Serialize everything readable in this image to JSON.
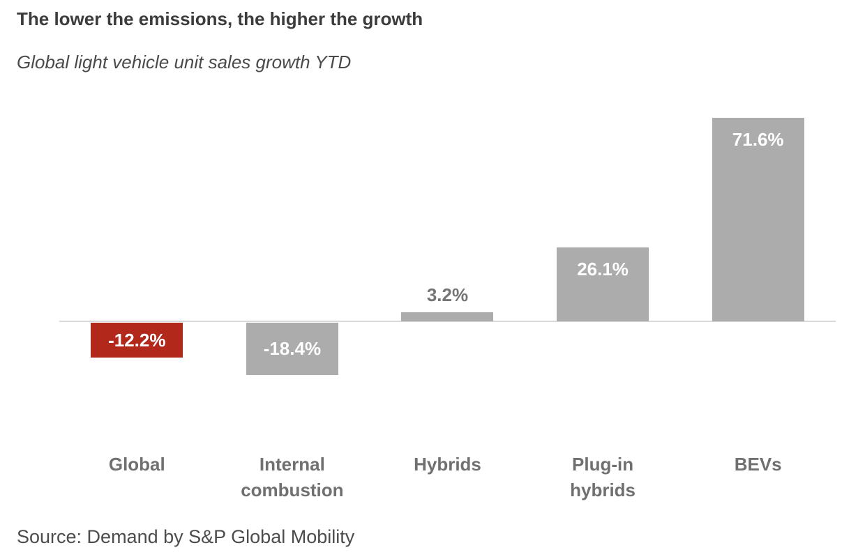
{
  "page": {
    "title": "The lower the emissions, the higher the growth",
    "subtitle": "Global light vehicle unit sales growth YTD",
    "source": "Source: Demand by S&P Global Mobility"
  },
  "colors": {
    "bar_default": "#acacac",
    "bar_highlight": "#b2291c",
    "axis_line": "#d9d9d9",
    "value_label_inside": "#ffffff",
    "value_label_outside": "#757575",
    "category_label": "#707070",
    "title_text": "#3c3c3c",
    "source_text": "#4c4c4c"
  },
  "chart_data": {
    "type": "bar",
    "title": "The lower the emissions, the higher the growth",
    "subtitle": "Global light vehicle unit sales growth YTD",
    "categories": [
      "Global",
      "Internal combustion",
      "Hybrids",
      "Plug-in hybrids",
      "BEVs"
    ],
    "values": [
      -12.2,
      -18.4,
      3.2,
      26.1,
      71.6
    ],
    "value_labels": [
      "-12.2%",
      "-18.4%",
      "3.2%",
      "26.1%",
      "71.6%"
    ],
    "bar_colors": [
      "#b2291c",
      "#acacac",
      "#acacac",
      "#acacac",
      "#acacac"
    ],
    "label_placement": [
      "center",
      "center",
      "above",
      "inside-top",
      "inside-top"
    ],
    "label_colors": [
      "#ffffff",
      "#ffffff",
      "#757575",
      "#ffffff",
      "#ffffff"
    ],
    "xlabel": "",
    "ylabel": "",
    "ylim": [
      -20,
      75
    ],
    "grid": false,
    "legend": "none",
    "zero_baseline": true,
    "source": "Source: Demand by S&P Global Mobility"
  }
}
